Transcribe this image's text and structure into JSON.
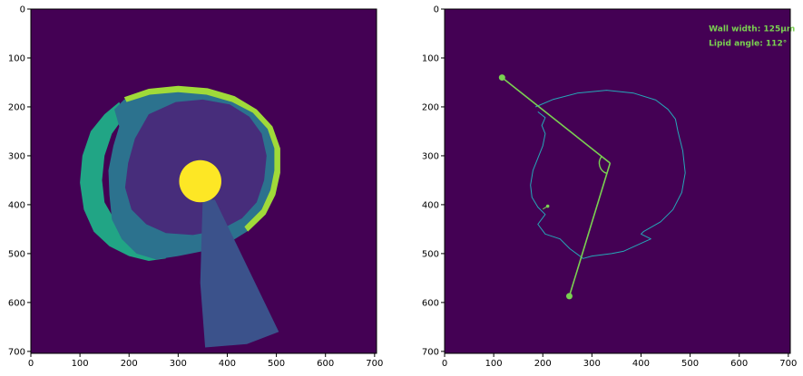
{
  "colors": {
    "background": "#440154",
    "lumen": "#fde725",
    "intima": "#472d7b",
    "media": "#2c728e",
    "adventitia": "#21a585",
    "lipid_cap": "#a0da39",
    "catheter_shadow": "#3b528b",
    "contour": "#25a8b8",
    "overlay": "#7ad151"
  },
  "chart_data": [
    {
      "type": "heatmap",
      "title": "",
      "xlabel": "",
      "ylabel": "",
      "xlim": [
        0,
        704
      ],
      "ylim": [
        704,
        0
      ],
      "xticks": [
        0,
        100,
        200,
        300,
        400,
        500,
        600,
        700
      ],
      "yticks": [
        0,
        100,
        200,
        300,
        400,
        500,
        600,
        700
      ],
      "description_classes": [
        "background",
        "adventitia",
        "media",
        "intima",
        "lipid_cap",
        "lumen",
        "catheter_shadow"
      ],
      "lumen_center": [
        345,
        352
      ],
      "lumen_radius": 43
    },
    {
      "type": "scatter",
      "title": "",
      "xlabel": "",
      "ylabel": "",
      "xlim": [
        0,
        704
      ],
      "ylim": [
        704,
        0
      ],
      "xticks": [
        0,
        100,
        200,
        300,
        400,
        500,
        600,
        700
      ],
      "yticks": [
        0,
        100,
        200,
        300,
        400,
        500,
        600,
        700
      ],
      "annotations": [
        "Wall width: 125µm",
        "Lipid angle: 112°"
      ],
      "angle_vertex": [
        337,
        315
      ],
      "angle_arm_points": [
        [
          117,
          140
        ],
        [
          254,
          587
        ]
      ],
      "inner_marker": [
        210,
        403
      ]
    }
  ]
}
